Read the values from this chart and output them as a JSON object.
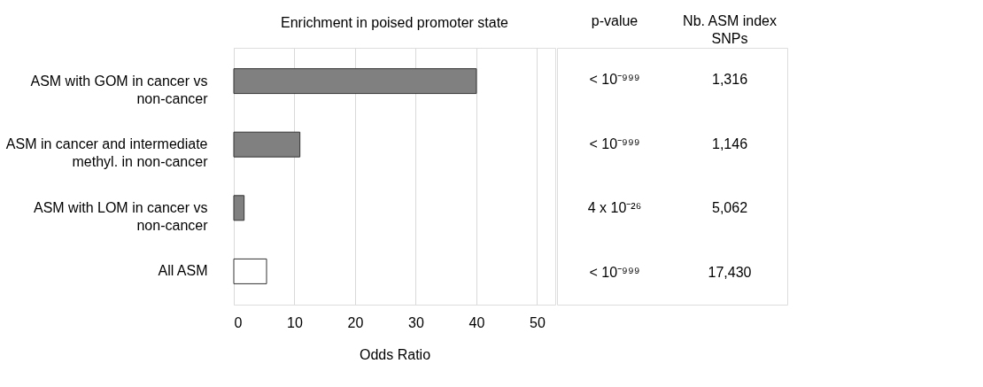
{
  "chart_data": {
    "type": "bar",
    "orientation": "horizontal",
    "title": "Enrichment in poised promoter state",
    "xlabel": "Odds Ratio",
    "categories": [
      "ASM with GOM in cancer vs\nnon-cancer",
      "ASM in cancer and intermediate\nmethyl. in non-cancer",
      "ASM with LOM in cancer vs\nnon-cancer",
      "All ASM"
    ],
    "values": [
      40,
      10.9,
      1.7,
      5.4
    ],
    "colors": [
      "#808080",
      "#808080",
      "#808080",
      "#ffffff"
    ],
    "xlim": [
      0,
      53
    ],
    "xticks": [
      0,
      10,
      20,
      30,
      40,
      50
    ],
    "grid": "x",
    "annotations": [
      "p-value",
      "Nb. ASM index\nSNPs",
      "< 10⁻⁹⁹⁹",
      "1,316",
      "< 10⁻⁹⁹⁹",
      "1,146",
      "4 x 10⁻²⁶",
      "5,062",
      "< 10⁻⁹⁹⁹",
      "17,430"
    ]
  }
}
